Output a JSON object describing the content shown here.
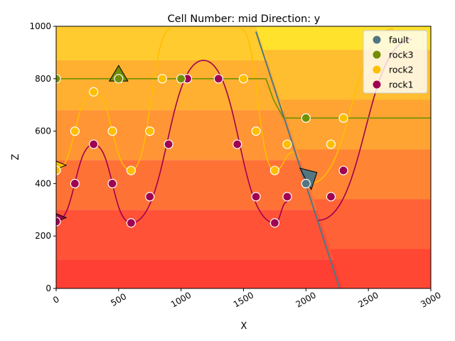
{
  "chart_data": {
    "type": "scatter",
    "title": "Cell Number: mid Direction: y",
    "xlabel": "X",
    "ylabel": "Z",
    "xlim": [
      0,
      3000
    ],
    "ylim": [
      0,
      1000
    ],
    "xticks": [
      "0",
      "500",
      "1000",
      "1500",
      "2000",
      "2500",
      "3000"
    ],
    "yticks": [
      "0",
      "200",
      "400",
      "600",
      "800",
      "1000"
    ],
    "legend_placement": "top-right",
    "grid": false,
    "legend": [
      {
        "name": "fault",
        "color": "#527682"
      },
      {
        "name": "rock3",
        "color": "#728f02"
      },
      {
        "name": "rock2",
        "color": "#ffbe00"
      },
      {
        "name": "rock1",
        "color": "#9f0052"
      }
    ],
    "background_bands": [
      {
        "z_from": 0,
        "z_to": 110,
        "color": "#ff3f33"
      },
      {
        "z_from": 110,
        "z_to": 300,
        "color": "#ff5237"
      },
      {
        "z_from": 300,
        "z_to": 490,
        "color": "#ff7236"
      },
      {
        "z_from": 490,
        "z_to": 680,
        "color": "#ff9535"
      },
      {
        "z_from": 680,
        "z_to": 870,
        "color": "#ffb031"
      },
      {
        "z_from": 870,
        "z_to": 1000,
        "color": "#ffcb2f"
      }
    ],
    "series": [
      {
        "name": "rock1",
        "color": "#9f0052",
        "points": [
          [
            0,
            255
          ],
          [
            150,
            400
          ],
          [
            300,
            550
          ],
          [
            450,
            400
          ],
          [
            600,
            250
          ],
          [
            750,
            350
          ],
          [
            900,
            550
          ],
          [
            1050,
            800
          ],
          [
            1300,
            800
          ],
          [
            1450,
            550
          ],
          [
            1600,
            350
          ],
          [
            1750,
            250
          ],
          [
            1850,
            350
          ],
          [
            2200,
            350
          ],
          [
            2300,
            450
          ]
        ]
      },
      {
        "name": "rock2",
        "color": "#ffbe00",
        "points": [
          [
            0,
            450
          ],
          [
            150,
            600
          ],
          [
            300,
            750
          ],
          [
            450,
            600
          ],
          [
            600,
            450
          ],
          [
            750,
            600
          ],
          [
            850,
            800
          ],
          [
            1500,
            800
          ],
          [
            1600,
            600
          ],
          [
            1750,
            450
          ],
          [
            1850,
            550
          ],
          [
            2200,
            550
          ],
          [
            2300,
            650
          ]
        ]
      },
      {
        "name": "rock3",
        "color": "#728f02",
        "points": [
          [
            0,
            800
          ],
          [
            500,
            800
          ],
          [
            1000,
            800
          ],
          [
            2000,
            650
          ]
        ]
      },
      {
        "name": "fault",
        "color": "#527682",
        "points": [
          [
            2000,
            400
          ]
        ]
      }
    ],
    "orientations": [
      {
        "series": "rock3",
        "x": 500,
        "z": 810,
        "shape": "up"
      },
      {
        "series": "rock2",
        "x": 0,
        "z": 470,
        "shape": "right"
      },
      {
        "series": "rock1",
        "x": 0,
        "z": 270,
        "shape": "right"
      },
      {
        "series": "fault",
        "x": 2020,
        "z": 410,
        "shape": "down-left"
      }
    ]
  }
}
